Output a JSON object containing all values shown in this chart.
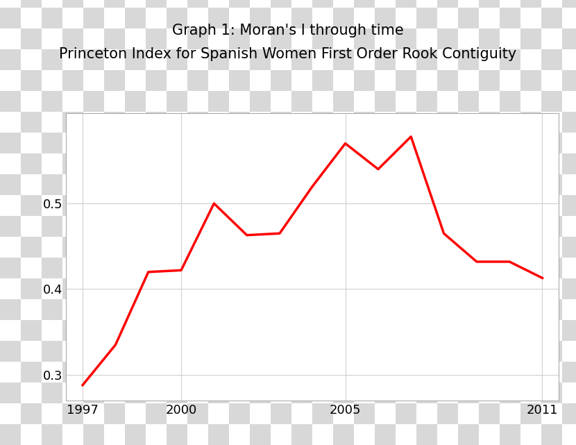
{
  "title_line1": "Graph 1: Moran's I through time",
  "title_line2": "Princeton Index for Spanish Women First Order Rook Contiguity",
  "x": [
    1997,
    1998,
    1999,
    2000,
    2001,
    2002,
    2003,
    2004,
    2005,
    2006,
    2007,
    2008,
    2009,
    2010,
    2011
  ],
  "y": [
    0.288,
    0.335,
    0.42,
    0.422,
    0.5,
    0.463,
    0.465,
    0.52,
    0.57,
    0.54,
    0.578,
    0.465,
    0.432,
    0.432,
    0.413
  ],
  "line_color": "#ff0000",
  "line_width": 2.5,
  "xlim": [
    1996.5,
    2011.5
  ],
  "ylim": [
    0.27,
    0.605
  ],
  "yticks": [
    0.3,
    0.4,
    0.5
  ],
  "xticks": [
    1997,
    2000,
    2005,
    2011
  ],
  "background_color": "#ffffff",
  "checker_color": "#d8d8d8",
  "checker_size": 30,
  "title_fontsize": 15,
  "tick_fontsize": 13,
  "grid_color": "#d0d0d0"
}
